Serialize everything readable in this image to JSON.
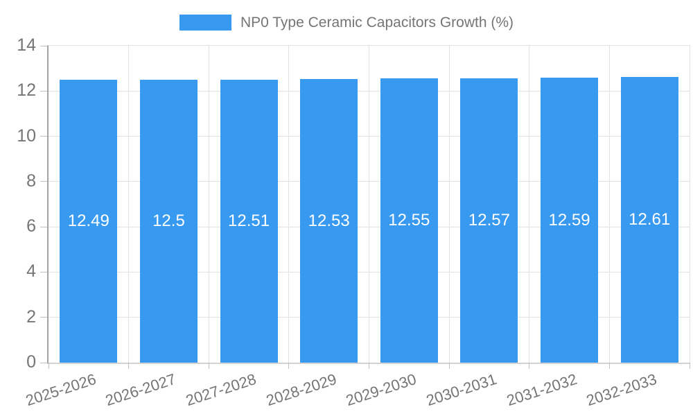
{
  "chart_data": {
    "type": "bar",
    "legend": "NP0 Type Ceramic Capacitors Growth (%)",
    "legend_position": "top",
    "categories": [
      "2025-2026",
      "2026-2027",
      "2027-2028",
      "2028-2029",
      "2029-2030",
      "2030-2031",
      "2031-2032",
      "2032-2033"
    ],
    "values": [
      12.49,
      12.5,
      12.51,
      12.53,
      12.55,
      12.57,
      12.59,
      12.61
    ],
    "value_labels": [
      "12.49",
      "12.5",
      "12.51",
      "12.53",
      "12.55",
      "12.57",
      "12.59",
      "12.61"
    ],
    "ylim": [
      0,
      14
    ],
    "yticks": [
      0,
      2,
      4,
      6,
      8,
      10,
      12,
      14
    ],
    "grid": true,
    "colors": {
      "bar": "#3899f0",
      "axis_text": "#757575",
      "grid_line": "#e2e2e2",
      "axis_line": "#a3a3a3",
      "value_label_text": "#ffffff"
    }
  }
}
